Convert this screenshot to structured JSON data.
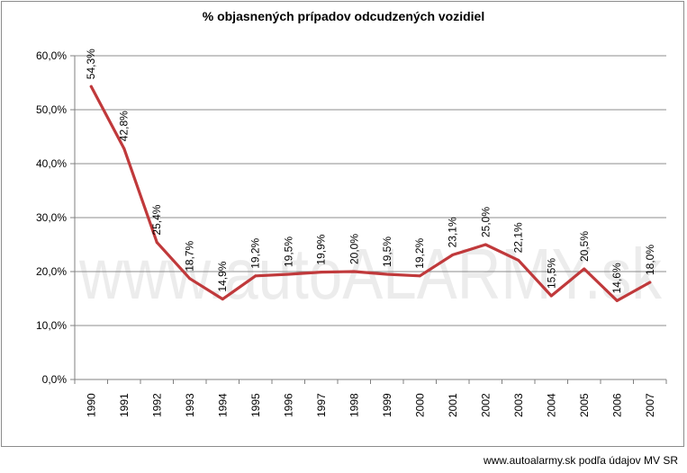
{
  "chart_data": {
    "type": "line",
    "title": "% objasnených prípadov odcudzených vozidiel",
    "categories": [
      "1990",
      "1991",
      "1992",
      "1993",
      "1994",
      "1995",
      "1996",
      "1997",
      "1998",
      "1999",
      "2000",
      "2001",
      "2002",
      "2003",
      "2004",
      "2005",
      "2006",
      "2007"
    ],
    "series": [
      {
        "values": [
          54.3,
          42.8,
          25.4,
          18.7,
          14.9,
          19.2,
          19.5,
          19.9,
          20.0,
          19.5,
          19.2,
          23.1,
          25.0,
          22.1,
          15.5,
          20.5,
          14.6,
          18.0
        ],
        "labels": [
          "54,3%",
          "42,8%",
          "25,4%",
          "18,7%",
          "14,9%",
          "19,2%",
          "19,5%",
          "19,9%",
          "20,0%",
          "19,5%",
          "19,2%",
          "23,1%",
          "25,0%",
          "22,1%",
          "15,5%",
          "20,5%",
          "14,6%",
          "18,0%"
        ]
      }
    ],
    "ylim": [
      0,
      60
    ],
    "yticks": [
      0,
      10,
      20,
      30,
      40,
      50,
      60
    ],
    "ytick_labels": [
      "0,0%",
      "10,0%",
      "20,0%",
      "30,0%",
      "40,0%",
      "50,0%",
      "60,0%"
    ],
    "grid": true,
    "line_color": "#c0393b",
    "watermark": "www.autoALARMY.sk"
  },
  "footer": {
    "source": "www.autoalarmy.sk podľa údajov MV SR"
  }
}
